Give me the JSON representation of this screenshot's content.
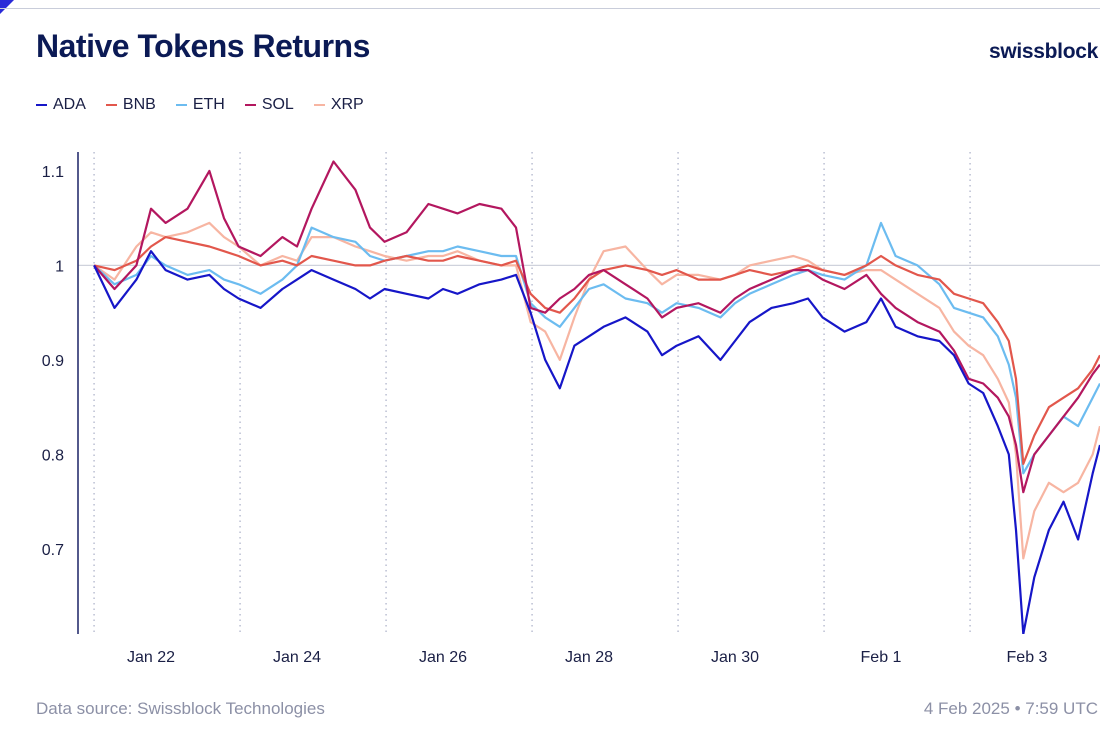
{
  "header": {
    "title": "Native Tokens Returns",
    "brand": "swissblock"
  },
  "footer": {
    "source": "Data source: Swissblock Technologies",
    "timestamp": "4 Feb 2025 • 7:59 UTC"
  },
  "chart_data": {
    "type": "line",
    "title": "Native Tokens Returns",
    "xlabel": "",
    "ylabel": "",
    "xlim": [
      0,
      14
    ],
    "ylim": [
      0.61,
      1.12
    ],
    "x_tick_labels": [
      {
        "x": 1,
        "label": "Jan 22"
      },
      {
        "x": 3,
        "label": "Jan 24"
      },
      {
        "x": 5,
        "label": "Jan 26"
      },
      {
        "x": 7,
        "label": "Jan 28"
      },
      {
        "x": 9,
        "label": "Jan 30"
      },
      {
        "x": 11,
        "label": "Feb 1"
      },
      {
        "x": 13,
        "label": "Feb 3"
      }
    ],
    "day_boundaries": [
      0.22,
      2.22,
      4.22,
      6.22,
      8.22,
      10.22,
      12.22
    ],
    "y_ticks": [
      {
        "value": 1.1,
        "label": "1.1"
      },
      {
        "value": 1.0,
        "label": "1"
      },
      {
        "value": 0.9,
        "label": "0.9"
      },
      {
        "value": 0.8,
        "label": "0.8"
      },
      {
        "value": 0.7,
        "label": "0.7"
      }
    ],
    "reference_line": 1.0,
    "legend_position": "top-left",
    "series": [
      {
        "name": "ADA",
        "color": "#1616c8",
        "x": [
          0.22,
          0.5,
          0.8,
          1.0,
          1.2,
          1.5,
          1.8,
          2.0,
          2.2,
          2.5,
          2.8,
          3.0,
          3.2,
          3.5,
          3.8,
          4.0,
          4.2,
          4.5,
          4.8,
          5.0,
          5.2,
          5.5,
          5.8,
          6.0,
          6.2,
          6.4,
          6.6,
          6.8,
          7.0,
          7.2,
          7.5,
          7.8,
          8.0,
          8.2,
          8.5,
          8.8,
          9.0,
          9.2,
          9.5,
          9.8,
          10.0,
          10.2,
          10.5,
          10.8,
          11.0,
          11.2,
          11.5,
          11.8,
          12.0,
          12.2,
          12.4,
          12.6,
          12.75,
          12.85,
          12.95,
          13.1,
          13.3,
          13.5,
          13.7,
          13.9,
          14.0
        ],
        "y": [
          1.0,
          0.955,
          0.985,
          1.015,
          0.995,
          0.985,
          0.99,
          0.975,
          0.965,
          0.955,
          0.975,
          0.985,
          0.995,
          0.985,
          0.975,
          0.965,
          0.975,
          0.97,
          0.965,
          0.975,
          0.97,
          0.98,
          0.985,
          0.99,
          0.95,
          0.9,
          0.87,
          0.915,
          0.925,
          0.935,
          0.945,
          0.93,
          0.905,
          0.915,
          0.925,
          0.9,
          0.92,
          0.94,
          0.955,
          0.96,
          0.965,
          0.945,
          0.93,
          0.94,
          0.965,
          0.935,
          0.925,
          0.92,
          0.905,
          0.875,
          0.865,
          0.83,
          0.8,
          0.72,
          0.61,
          0.67,
          0.72,
          0.75,
          0.71,
          0.78,
          0.81
        ]
      },
      {
        "name": "BNB",
        "color": "#e2574c",
        "x": [
          0.22,
          0.5,
          0.8,
          1.0,
          1.2,
          1.5,
          1.8,
          2.0,
          2.2,
          2.5,
          2.8,
          3.0,
          3.2,
          3.5,
          3.8,
          4.0,
          4.2,
          4.5,
          4.8,
          5.0,
          5.2,
          5.5,
          5.8,
          6.0,
          6.2,
          6.4,
          6.6,
          6.8,
          7.0,
          7.2,
          7.5,
          7.8,
          8.0,
          8.2,
          8.5,
          8.8,
          9.0,
          9.2,
          9.5,
          9.8,
          10.0,
          10.2,
          10.5,
          10.8,
          11.0,
          11.2,
          11.5,
          11.8,
          12.0,
          12.2,
          12.4,
          12.6,
          12.75,
          12.85,
          12.95,
          13.1,
          13.3,
          13.5,
          13.7,
          13.9,
          14.0
        ],
        "y": [
          1.0,
          0.995,
          1.005,
          1.02,
          1.03,
          1.025,
          1.02,
          1.015,
          1.01,
          1.0,
          1.005,
          1.0,
          1.01,
          1.005,
          1.0,
          1.0,
          1.005,
          1.01,
          1.005,
          1.005,
          1.01,
          1.005,
          1.0,
          1.005,
          0.97,
          0.955,
          0.95,
          0.965,
          0.985,
          0.995,
          1.0,
          0.995,
          0.99,
          0.995,
          0.985,
          0.985,
          0.99,
          0.995,
          0.99,
          0.995,
          1.0,
          0.995,
          0.99,
          1.0,
          1.01,
          1.0,
          0.99,
          0.985,
          0.97,
          0.965,
          0.96,
          0.94,
          0.92,
          0.88,
          0.79,
          0.82,
          0.85,
          0.86,
          0.87,
          0.89,
          0.905
        ]
      },
      {
        "name": "ETH",
        "color": "#6cbcf0",
        "x": [
          0.22,
          0.5,
          0.8,
          1.0,
          1.2,
          1.5,
          1.8,
          2.0,
          2.2,
          2.5,
          2.8,
          3.0,
          3.2,
          3.5,
          3.8,
          4.0,
          4.2,
          4.5,
          4.8,
          5.0,
          5.2,
          5.5,
          5.8,
          6.0,
          6.2,
          6.4,
          6.6,
          6.8,
          7.0,
          7.2,
          7.5,
          7.8,
          8.0,
          8.2,
          8.5,
          8.8,
          9.0,
          9.2,
          9.5,
          9.8,
          10.0,
          10.2,
          10.5,
          10.8,
          11.0,
          11.2,
          11.5,
          11.8,
          12.0,
          12.2,
          12.4,
          12.6,
          12.75,
          12.85,
          12.95,
          13.1,
          13.3,
          13.5,
          13.7,
          13.9,
          14.0
        ],
        "y": [
          1.0,
          0.98,
          0.99,
          1.01,
          1.0,
          0.99,
          0.995,
          0.985,
          0.98,
          0.97,
          0.985,
          1.0,
          1.04,
          1.03,
          1.025,
          1.01,
          1.005,
          1.01,
          1.015,
          1.015,
          1.02,
          1.015,
          1.01,
          1.01,
          0.96,
          0.945,
          0.935,
          0.955,
          0.975,
          0.98,
          0.965,
          0.96,
          0.95,
          0.96,
          0.955,
          0.945,
          0.96,
          0.97,
          0.98,
          0.99,
          0.995,
          0.99,
          0.985,
          1.0,
          1.045,
          1.01,
          1.0,
          0.98,
          0.955,
          0.95,
          0.945,
          0.925,
          0.895,
          0.86,
          0.78,
          0.8,
          0.82,
          0.84,
          0.83,
          0.86,
          0.875
        ]
      },
      {
        "name": "SOL",
        "color": "#b3175f",
        "x": [
          0.22,
          0.5,
          0.8,
          1.0,
          1.2,
          1.5,
          1.8,
          2.0,
          2.2,
          2.5,
          2.8,
          3.0,
          3.2,
          3.5,
          3.8,
          4.0,
          4.2,
          4.5,
          4.8,
          5.0,
          5.2,
          5.5,
          5.8,
          6.0,
          6.2,
          6.4,
          6.6,
          6.8,
          7.0,
          7.2,
          7.5,
          7.8,
          8.0,
          8.2,
          8.5,
          8.8,
          9.0,
          9.2,
          9.5,
          9.8,
          10.0,
          10.2,
          10.5,
          10.8,
          11.0,
          11.2,
          11.5,
          11.8,
          12.0,
          12.2,
          12.4,
          12.6,
          12.75,
          12.85,
          12.95,
          13.1,
          13.3,
          13.5,
          13.7,
          13.9,
          14.0
        ],
        "y": [
          1.0,
          0.975,
          1.0,
          1.06,
          1.045,
          1.06,
          1.1,
          1.05,
          1.02,
          1.01,
          1.03,
          1.02,
          1.06,
          1.11,
          1.08,
          1.04,
          1.025,
          1.035,
          1.065,
          1.06,
          1.055,
          1.065,
          1.06,
          1.04,
          0.955,
          0.95,
          0.965,
          0.975,
          0.99,
          0.995,
          0.98,
          0.965,
          0.945,
          0.955,
          0.96,
          0.95,
          0.965,
          0.975,
          0.985,
          0.995,
          0.995,
          0.985,
          0.975,
          0.99,
          0.97,
          0.955,
          0.94,
          0.93,
          0.91,
          0.88,
          0.875,
          0.86,
          0.84,
          0.81,
          0.76,
          0.8,
          0.82,
          0.84,
          0.86,
          0.885,
          0.895
        ]
      },
      {
        "name": "XRP",
        "color": "#f7b5a2",
        "x": [
          0.22,
          0.5,
          0.8,
          1.0,
          1.2,
          1.5,
          1.8,
          2.0,
          2.2,
          2.5,
          2.8,
          3.0,
          3.2,
          3.5,
          3.8,
          4.0,
          4.2,
          4.5,
          4.8,
          5.0,
          5.2,
          5.5,
          5.8,
          6.0,
          6.2,
          6.4,
          6.6,
          6.8,
          7.0,
          7.2,
          7.5,
          7.8,
          8.0,
          8.2,
          8.5,
          8.8,
          9.0,
          9.2,
          9.5,
          9.8,
          10.0,
          10.2,
          10.5,
          10.8,
          11.0,
          11.2,
          11.5,
          11.8,
          12.0,
          12.2,
          12.4,
          12.6,
          12.75,
          12.85,
          12.95,
          13.1,
          13.3,
          13.5,
          13.7,
          13.9,
          14.0
        ],
        "y": [
          1.0,
          0.985,
          1.02,
          1.035,
          1.03,
          1.035,
          1.045,
          1.03,
          1.02,
          1.0,
          1.01,
          1.005,
          1.03,
          1.03,
          1.02,
          1.015,
          1.01,
          1.005,
          1.01,
          1.01,
          1.015,
          1.005,
          1.0,
          1.0,
          0.94,
          0.93,
          0.9,
          0.945,
          0.985,
          1.015,
          1.02,
          0.995,
          0.98,
          0.99,
          0.99,
          0.985,
          0.99,
          1.0,
          1.005,
          1.01,
          1.005,
          0.995,
          0.99,
          0.995,
          0.995,
          0.985,
          0.97,
          0.955,
          0.93,
          0.915,
          0.905,
          0.88,
          0.855,
          0.8,
          0.69,
          0.74,
          0.77,
          0.76,
          0.77,
          0.8,
          0.83
        ]
      }
    ]
  }
}
